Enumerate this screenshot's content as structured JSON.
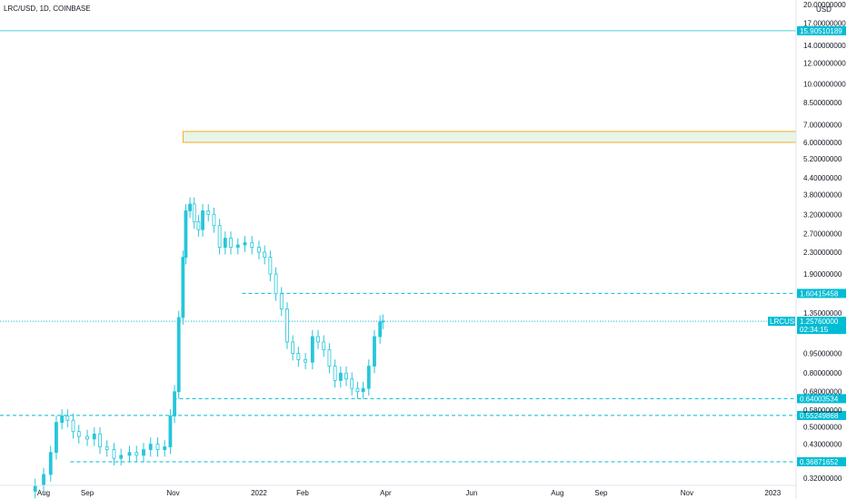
{
  "header": {
    "title": "LRC/USD, 1D, COINBASE",
    "currency": "USD"
  },
  "chart_data": {
    "type": "candlestick",
    "symbol": "LRCUSD",
    "scale": "log",
    "ylim": [
      0.3,
      20.0
    ],
    "y_ticks": [
      "20.00000000",
      "17.00000000",
      "14.00000000",
      "12.00000000",
      "10.00000000",
      "8.50000000",
      "7.00000000",
      "6.00000000",
      "5.20000000",
      "4.40000000",
      "3.80000000",
      "3.20000000",
      "2.70000000",
      "2.30000000",
      "1.90000000",
      "1.35000000",
      "0.95000000",
      "0.80000000",
      "0.68000000",
      "0.58000000",
      "0.50000000",
      "0.43000000",
      "0.32000000"
    ],
    "y_tick_values": [
      20.0,
      17.0,
      14.0,
      12.0,
      10.0,
      8.5,
      7.0,
      6.0,
      5.2,
      4.4,
      3.8,
      3.2,
      2.7,
      2.3,
      1.9,
      1.35,
      0.95,
      0.8,
      0.68,
      0.58,
      0.5,
      0.43,
      0.32
    ],
    "x_ticks": [
      "Aug",
      "Sep",
      "Nov",
      "2022",
      "Feb",
      "Apr",
      "Jun",
      "Aug",
      "Sep",
      "Nov",
      "2023"
    ],
    "x_tick_dates": [
      "2021-08-01",
      "2021-09-01",
      "2021-11-01",
      "2022-01-01",
      "2022-02-01",
      "2022-04-01",
      "2022-06-01",
      "2022-08-01",
      "2022-09-01",
      "2022-11-01",
      "2023-01-01"
    ],
    "levels": [
      {
        "label": "15.90510189",
        "value": 15.90510189,
        "style": "solid",
        "start": "2021-07-01"
      },
      {
        "label": "1.60415458",
        "value": 1.60415458,
        "style": "dashed",
        "start": "2021-12-20"
      },
      {
        "label": "0.64003534",
        "value": 0.64003534,
        "style": "dashed",
        "start": "2021-11-01"
      },
      {
        "label": "0.55249868",
        "value": 0.55249868,
        "style": "dashed",
        "start": "2021-07-01"
      },
      {
        "label": "0.36871652",
        "value": 0.36871652,
        "style": "dashed",
        "start": "2021-08-20"
      }
    ],
    "zone": {
      "low": 6.0,
      "high": 6.6,
      "start": "2021-11-08"
    },
    "last_price": {
      "label": "1.25760000",
      "value": 1.2576,
      "countdown": "02:34:15",
      "symbol": "LRCUSD"
    },
    "candles": [
      {
        "date": "2021-07-26",
        "value": 0.3
      },
      {
        "date": "2021-08-01",
        "value": 0.33
      },
      {
        "date": "2021-08-06",
        "value": 0.4
      },
      {
        "date": "2021-08-10",
        "value": 0.52
      },
      {
        "date": "2021-08-14",
        "value": 0.55
      },
      {
        "date": "2021-08-18",
        "value": 0.53
      },
      {
        "date": "2021-08-22",
        "value": 0.48
      },
      {
        "date": "2021-08-26",
        "value": 0.46
      },
      {
        "date": "2021-09-01",
        "value": 0.45
      },
      {
        "date": "2021-09-06",
        "value": 0.47
      },
      {
        "date": "2021-09-10",
        "value": 0.42
      },
      {
        "date": "2021-09-15",
        "value": 0.41
      },
      {
        "date": "2021-09-20",
        "value": 0.38
      },
      {
        "date": "2021-09-25",
        "value": 0.39
      },
      {
        "date": "2021-10-01",
        "value": 0.4
      },
      {
        "date": "2021-10-06",
        "value": 0.39
      },
      {
        "date": "2021-10-11",
        "value": 0.41
      },
      {
        "date": "2021-10-16",
        "value": 0.43
      },
      {
        "date": "2021-10-21",
        "value": 0.41
      },
      {
        "date": "2021-10-26",
        "value": 0.42
      },
      {
        "date": "2021-10-30",
        "value": 0.55
      },
      {
        "date": "2021-11-02",
        "value": 0.68
      },
      {
        "date": "2021-11-05",
        "value": 1.3
      },
      {
        "date": "2021-11-08",
        "value": 2.2
      },
      {
        "date": "2021-11-10",
        "value": 3.3
      },
      {
        "date": "2021-11-13",
        "value": 3.5
      },
      {
        "date": "2021-11-16",
        "value": 3.0
      },
      {
        "date": "2021-11-19",
        "value": 2.8
      },
      {
        "date": "2021-11-22",
        "value": 3.3
      },
      {
        "date": "2021-11-26",
        "value": 3.2
      },
      {
        "date": "2021-11-30",
        "value": 2.9
      },
      {
        "date": "2021-12-04",
        "value": 2.4
      },
      {
        "date": "2021-12-08",
        "value": 2.6
      },
      {
        "date": "2021-12-12",
        "value": 2.4
      },
      {
        "date": "2021-12-17",
        "value": 2.45
      },
      {
        "date": "2021-12-22",
        "value": 2.5
      },
      {
        "date": "2021-12-27",
        "value": 2.4
      },
      {
        "date": "2022-01-01",
        "value": 2.3
      },
      {
        "date": "2022-01-05",
        "value": 2.2
      },
      {
        "date": "2022-01-09",
        "value": 1.9
      },
      {
        "date": "2022-01-13",
        "value": 1.6
      },
      {
        "date": "2022-01-17",
        "value": 1.4
      },
      {
        "date": "2022-01-21",
        "value": 1.05
      },
      {
        "date": "2022-01-25",
        "value": 0.95
      },
      {
        "date": "2022-01-29",
        "value": 0.9
      },
      {
        "date": "2022-02-03",
        "value": 0.88
      },
      {
        "date": "2022-02-08",
        "value": 1.1
      },
      {
        "date": "2022-02-12",
        "value": 1.05
      },
      {
        "date": "2022-02-16",
        "value": 0.98
      },
      {
        "date": "2022-02-20",
        "value": 0.85
      },
      {
        "date": "2022-02-24",
        "value": 0.75
      },
      {
        "date": "2022-02-28",
        "value": 0.8
      },
      {
        "date": "2022-03-04",
        "value": 0.76
      },
      {
        "date": "2022-03-08",
        "value": 0.7
      },
      {
        "date": "2022-03-12",
        "value": 0.68
      },
      {
        "date": "2022-03-16",
        "value": 0.7
      },
      {
        "date": "2022-03-20",
        "value": 0.85
      },
      {
        "date": "2022-03-24",
        "value": 1.1
      },
      {
        "date": "2022-03-28",
        "value": 1.25
      },
      {
        "date": "2022-03-30",
        "value": 1.26
      }
    ]
  },
  "colors": {
    "accent": "#00bcd4",
    "level_solid": "#4dd0e1",
    "zone_border": "#f9a825",
    "zone_fill": "#e8f5e9",
    "candle": "#26c6da",
    "text": "#131722"
  }
}
